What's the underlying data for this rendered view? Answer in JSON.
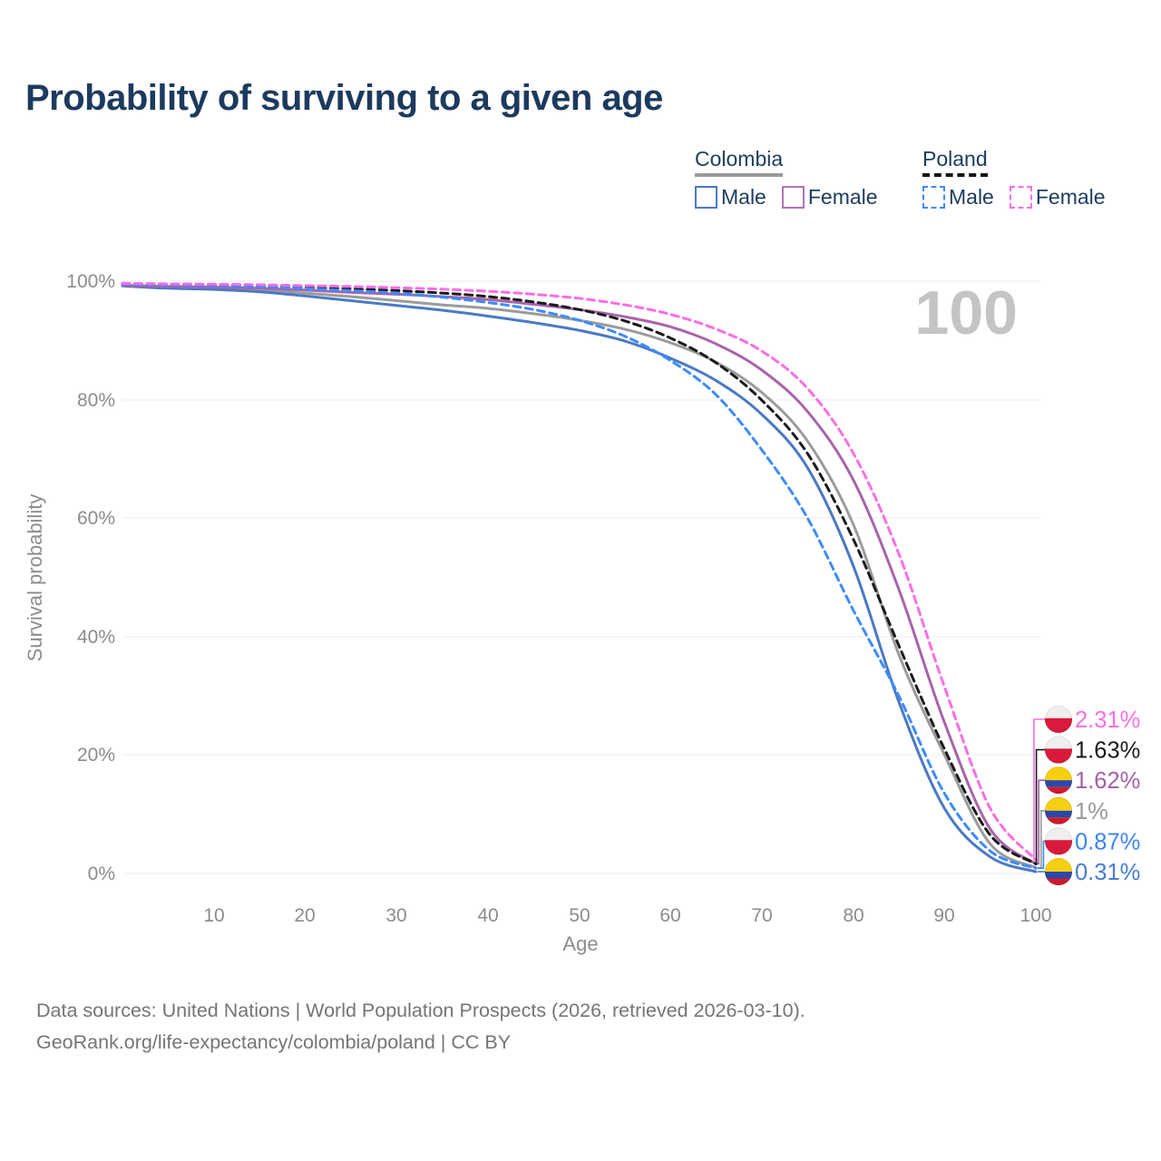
{
  "title": "Probability of surviving to a given age",
  "legend": {
    "colombia": {
      "title": "Colombia",
      "male": "Male",
      "female": "Female",
      "male_color": "#4b79c4",
      "female_color": "#b273b3",
      "underline_color": "#9a9a9a",
      "line_style": "solid"
    },
    "poland": {
      "title": "Poland",
      "male": "Male",
      "female": "Female",
      "male_color": "#3d8bfd",
      "female_color": "#fb6ee4",
      "underline_color": "#141414",
      "line_style": "dashed"
    }
  },
  "footer": {
    "line1": "Data sources: United Nations | World Population Prospects (2026, retrieved 2026-03-10).",
    "line2": "GeoRank.org/life-expectancy/colombia/poland | CC BY"
  },
  "chart_data": {
    "type": "line",
    "title": "Probability of surviving to a given age",
    "xlabel": "Age",
    "ylabel": "Survival probability",
    "unit": "%",
    "xlim": [
      0,
      100
    ],
    "ylim": [
      0,
      100
    ],
    "grid": "horizontal",
    "watermark": "100",
    "hover_age": "100",
    "xtick_labels": [
      "10",
      "20",
      "30",
      "40",
      "50",
      "60",
      "70",
      "80",
      "90",
      "100"
    ],
    "ytick_labels": [
      "100%",
      "80%",
      "60%",
      "40%",
      "20%",
      "0%"
    ],
    "ages": [
      0,
      5,
      10,
      15,
      20,
      25,
      30,
      35,
      40,
      45,
      50,
      55,
      60,
      65,
      70,
      75,
      80,
      85,
      90,
      95,
      100
    ],
    "series": [
      {
        "name": "Colombia Overall",
        "country": "Colombia",
        "group": "overall",
        "color": "#9b9b9b",
        "dash": "solid",
        "values": [
          99.25,
          98.95,
          98.75,
          98.5,
          98.0,
          97.4,
          96.7,
          96.0,
          95.4,
          94.5,
          93.4,
          91.9,
          89.6,
          86.3,
          81.2,
          73.0,
          59.0,
          37.0,
          20.0,
          5.0,
          1.0
        ]
      },
      {
        "name": "Colombia Male",
        "country": "Colombia",
        "group": "male",
        "color": "#4b79c4",
        "dash": "solid",
        "values": [
          99.2,
          98.8,
          98.6,
          98.2,
          97.5,
          96.7,
          95.9,
          95.1,
          94.1,
          93.0,
          91.7,
          89.9,
          87.0,
          83.2,
          77.5,
          68.5,
          52.0,
          29.0,
          11.0,
          2.8,
          0.31
        ]
      },
      {
        "name": "Colombia Female",
        "country": "Colombia",
        "group": "female",
        "color": "#a864ab",
        "dash": "solid",
        "values": [
          99.3,
          99.1,
          99.0,
          98.8,
          98.5,
          98.1,
          97.8,
          97.4,
          96.9,
          96.1,
          95.2,
          94.0,
          92.3,
          89.4,
          85.0,
          78.0,
          66.5,
          48.0,
          25.5,
          7.5,
          1.62
        ]
      },
      {
        "name": "Poland Overall",
        "country": "Poland",
        "group": "overall",
        "color": "#1b1b1b",
        "dash": "dashed",
        "values": [
          99.55,
          99.45,
          99.35,
          99.2,
          98.95,
          98.7,
          98.4,
          98.0,
          97.4,
          96.5,
          95.2,
          93.3,
          90.4,
          86.2,
          79.9,
          70.9,
          56.5,
          38.5,
          21.0,
          6.5,
          1.63
        ]
      },
      {
        "name": "Poland Male",
        "country": "Poland",
        "group": "male",
        "color": "#3d8bfd",
        "dash": "dashed",
        "values": [
          99.5,
          99.35,
          99.25,
          99.05,
          98.75,
          98.4,
          98.0,
          97.3,
          96.4,
          95.2,
          93.4,
          90.7,
          86.6,
          80.8,
          71.5,
          60.0,
          44.5,
          30.0,
          13.5,
          3.8,
          0.87
        ]
      },
      {
        "name": "Poland Female",
        "country": "Poland",
        "group": "female",
        "color": "#fb6ee4",
        "dash": "dashed",
        "values": [
          99.65,
          99.55,
          99.5,
          99.4,
          99.25,
          99.1,
          98.9,
          98.65,
          98.3,
          97.8,
          97.1,
          96.0,
          94.4,
          91.9,
          88.2,
          81.9,
          71.0,
          54.0,
          31.5,
          11.0,
          2.31
        ]
      }
    ],
    "end_labels": [
      {
        "text": "2.31%",
        "value": 2.31,
        "color": "#fb6ee4",
        "flag": "poland",
        "series": "Poland Female"
      },
      {
        "text": "1.63%",
        "value": 1.63,
        "color": "#1a1a1a",
        "flag": "poland",
        "series": "Poland Overall"
      },
      {
        "text": "1.62%",
        "value": 1.62,
        "color": "#a45fa8",
        "flag": "colombia",
        "series": "Colombia Female"
      },
      {
        "text": "1%",
        "value": 1.0,
        "color": "#999999",
        "flag": "colombia",
        "series": "Colombia Overall"
      },
      {
        "text": "0.87%",
        "value": 0.87,
        "color": "#3c86f0",
        "flag": "poland",
        "series": "Poland Male"
      },
      {
        "text": "0.31%",
        "value": 0.31,
        "color": "#4a7cd0",
        "flag": "colombia",
        "series": "Colombia Male"
      }
    ],
    "flag_colors": {
      "poland": {
        "white": "#efefef",
        "red": "#d91a3c"
      },
      "colombia": {
        "yellow": "#f6cf12",
        "blue": "#2b48a8",
        "red": "#cd1b2c"
      }
    }
  }
}
